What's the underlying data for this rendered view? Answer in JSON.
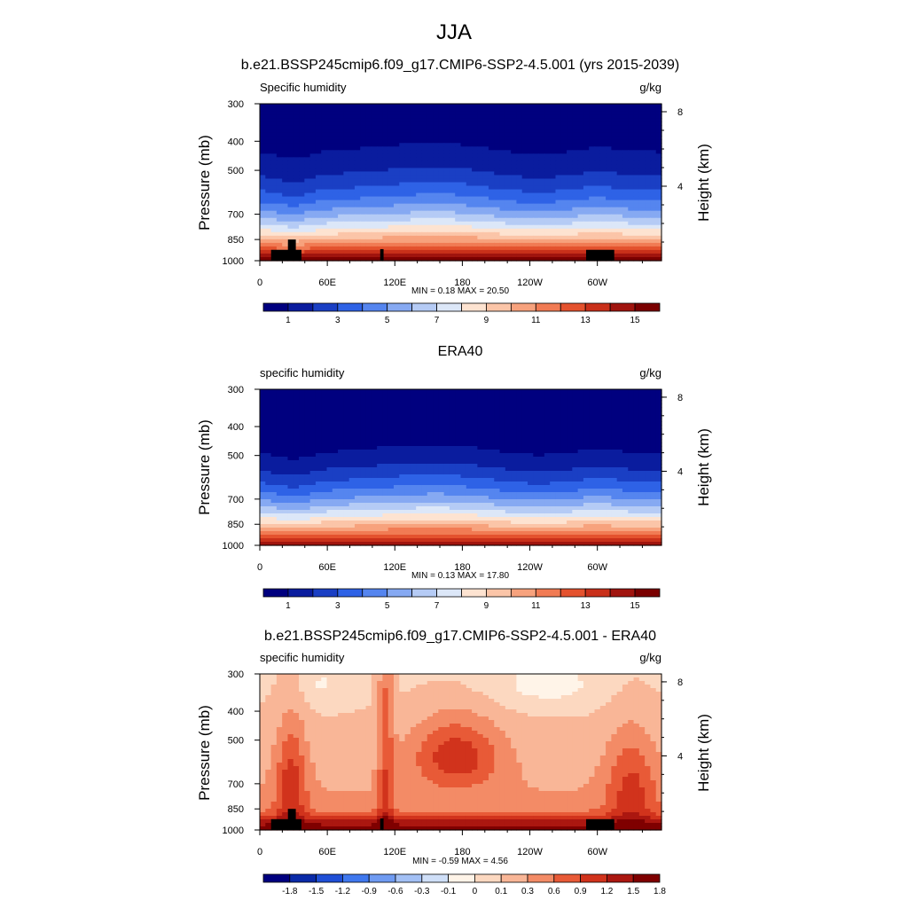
{
  "figure": {
    "title": "JJA"
  },
  "colors": {
    "abs_palette": [
      "#00007f",
      "#0a1c9e",
      "#1a3fc4",
      "#2e62e6",
      "#5585ef",
      "#86a9f2",
      "#b5cbf5",
      "#dce7f8",
      "#fde3d1",
      "#fbc5a8",
      "#f7a27d",
      "#f17b54",
      "#e4522e",
      "#c9301a",
      "#a0140e",
      "#7a0000"
    ],
    "diff_palette": [
      "#00007f",
      "#0a2aa8",
      "#1f4fd6",
      "#3f78ee",
      "#6f9bf2",
      "#a3c0f5",
      "#cfdff8",
      "#fff4e8",
      "#fcd8c0",
      "#f9b697",
      "#f38b66",
      "#e85a37",
      "#d1331c",
      "#ab1710",
      "#7f0000"
    ]
  },
  "chart_data": [
    {
      "type": "heatmap",
      "title": "b.e21.BSSP245cmip6.f09_g17.CMIP6-SSP2-4.5.001 (yrs 2015-2039)",
      "left_label": "Specific humidity",
      "right_label": "g/kg",
      "xlabel": "",
      "ylabel": "Pressure (mb)",
      "ylabel_right": "Height (km)",
      "x_ticks": [
        "0",
        "60E",
        "120E",
        "180",
        "120W",
        "60W"
      ],
      "x_tick_values": [
        0,
        60,
        120,
        180,
        240,
        300
      ],
      "xlim": [
        0,
        357
      ],
      "y_ticks": [
        "300",
        "400",
        "500",
        "700",
        "850",
        "1000"
      ],
      "y_tick_values": [
        300,
        400,
        500,
        700,
        850,
        1000
      ],
      "ylim": [
        1000,
        300
      ],
      "height_ticks": [
        "8",
        "4"
      ],
      "height_tick_values": [
        8,
        4
      ],
      "min_max_text": "MIN =   0.18  MAX =  20.50",
      "colorbar_labels": [
        "1",
        "3",
        "5",
        "7",
        "9",
        "11",
        "13",
        "15"
      ],
      "field": "abs",
      "moisture_offset": 0.0,
      "terrain": true
    },
    {
      "type": "heatmap",
      "title": "ERA40",
      "left_label": "specific humidity",
      "right_label": "g/kg",
      "xlabel": "",
      "ylabel": "Pressure (mb)",
      "ylabel_right": "Height (km)",
      "x_ticks": [
        "0",
        "60E",
        "120E",
        "180",
        "120W",
        "60W"
      ],
      "x_tick_values": [
        0,
        60,
        120,
        180,
        240,
        300
      ],
      "xlim": [
        0,
        357
      ],
      "y_ticks": [
        "300",
        "400",
        "500",
        "700",
        "850",
        "1000"
      ],
      "y_tick_values": [
        300,
        400,
        500,
        700,
        850,
        1000
      ],
      "ylim": [
        1000,
        300
      ],
      "height_ticks": [
        "8",
        "4"
      ],
      "height_tick_values": [
        8,
        4
      ],
      "min_max_text": "MIN =   0.13  MAX =  17.80",
      "colorbar_labels": [
        "1",
        "3",
        "5",
        "7",
        "9",
        "11",
        "13",
        "15"
      ],
      "field": "abs",
      "moisture_offset": -0.6,
      "terrain": false
    },
    {
      "type": "heatmap",
      "title": "b.e21.BSSP245cmip6.f09_g17.CMIP6-SSP2-4.5.001 - ERA40",
      "left_label": "specific humidity",
      "right_label": "g/kg",
      "xlabel": "",
      "ylabel": "Pressure (mb)",
      "ylabel_right": "Height (km)",
      "x_ticks": [
        "0",
        "60E",
        "120E",
        "180",
        "120W",
        "60W"
      ],
      "x_tick_values": [
        0,
        60,
        120,
        180,
        240,
        300
      ],
      "xlim": [
        0,
        357
      ],
      "y_ticks": [
        "300",
        "400",
        "500",
        "700",
        "850",
        "1000"
      ],
      "y_tick_values": [
        300,
        400,
        500,
        700,
        850,
        1000
      ],
      "ylim": [
        1000,
        300
      ],
      "height_ticks": [
        "8",
        "4"
      ],
      "height_tick_values": [
        8,
        4
      ],
      "min_max_text": "MIN =  -0.59  MAX =   4.56",
      "colorbar_labels": [
        "-1.8",
        "-1.5",
        "-1.2",
        "-0.9",
        "-0.6",
        "-0.3",
        "-0.1",
        "0",
        "0.1",
        "0.3",
        "0.6",
        "0.9",
        "1.2",
        "1.5",
        "1.8"
      ],
      "field": "diff",
      "moisture_offset": 0.0,
      "terrain": true
    }
  ]
}
